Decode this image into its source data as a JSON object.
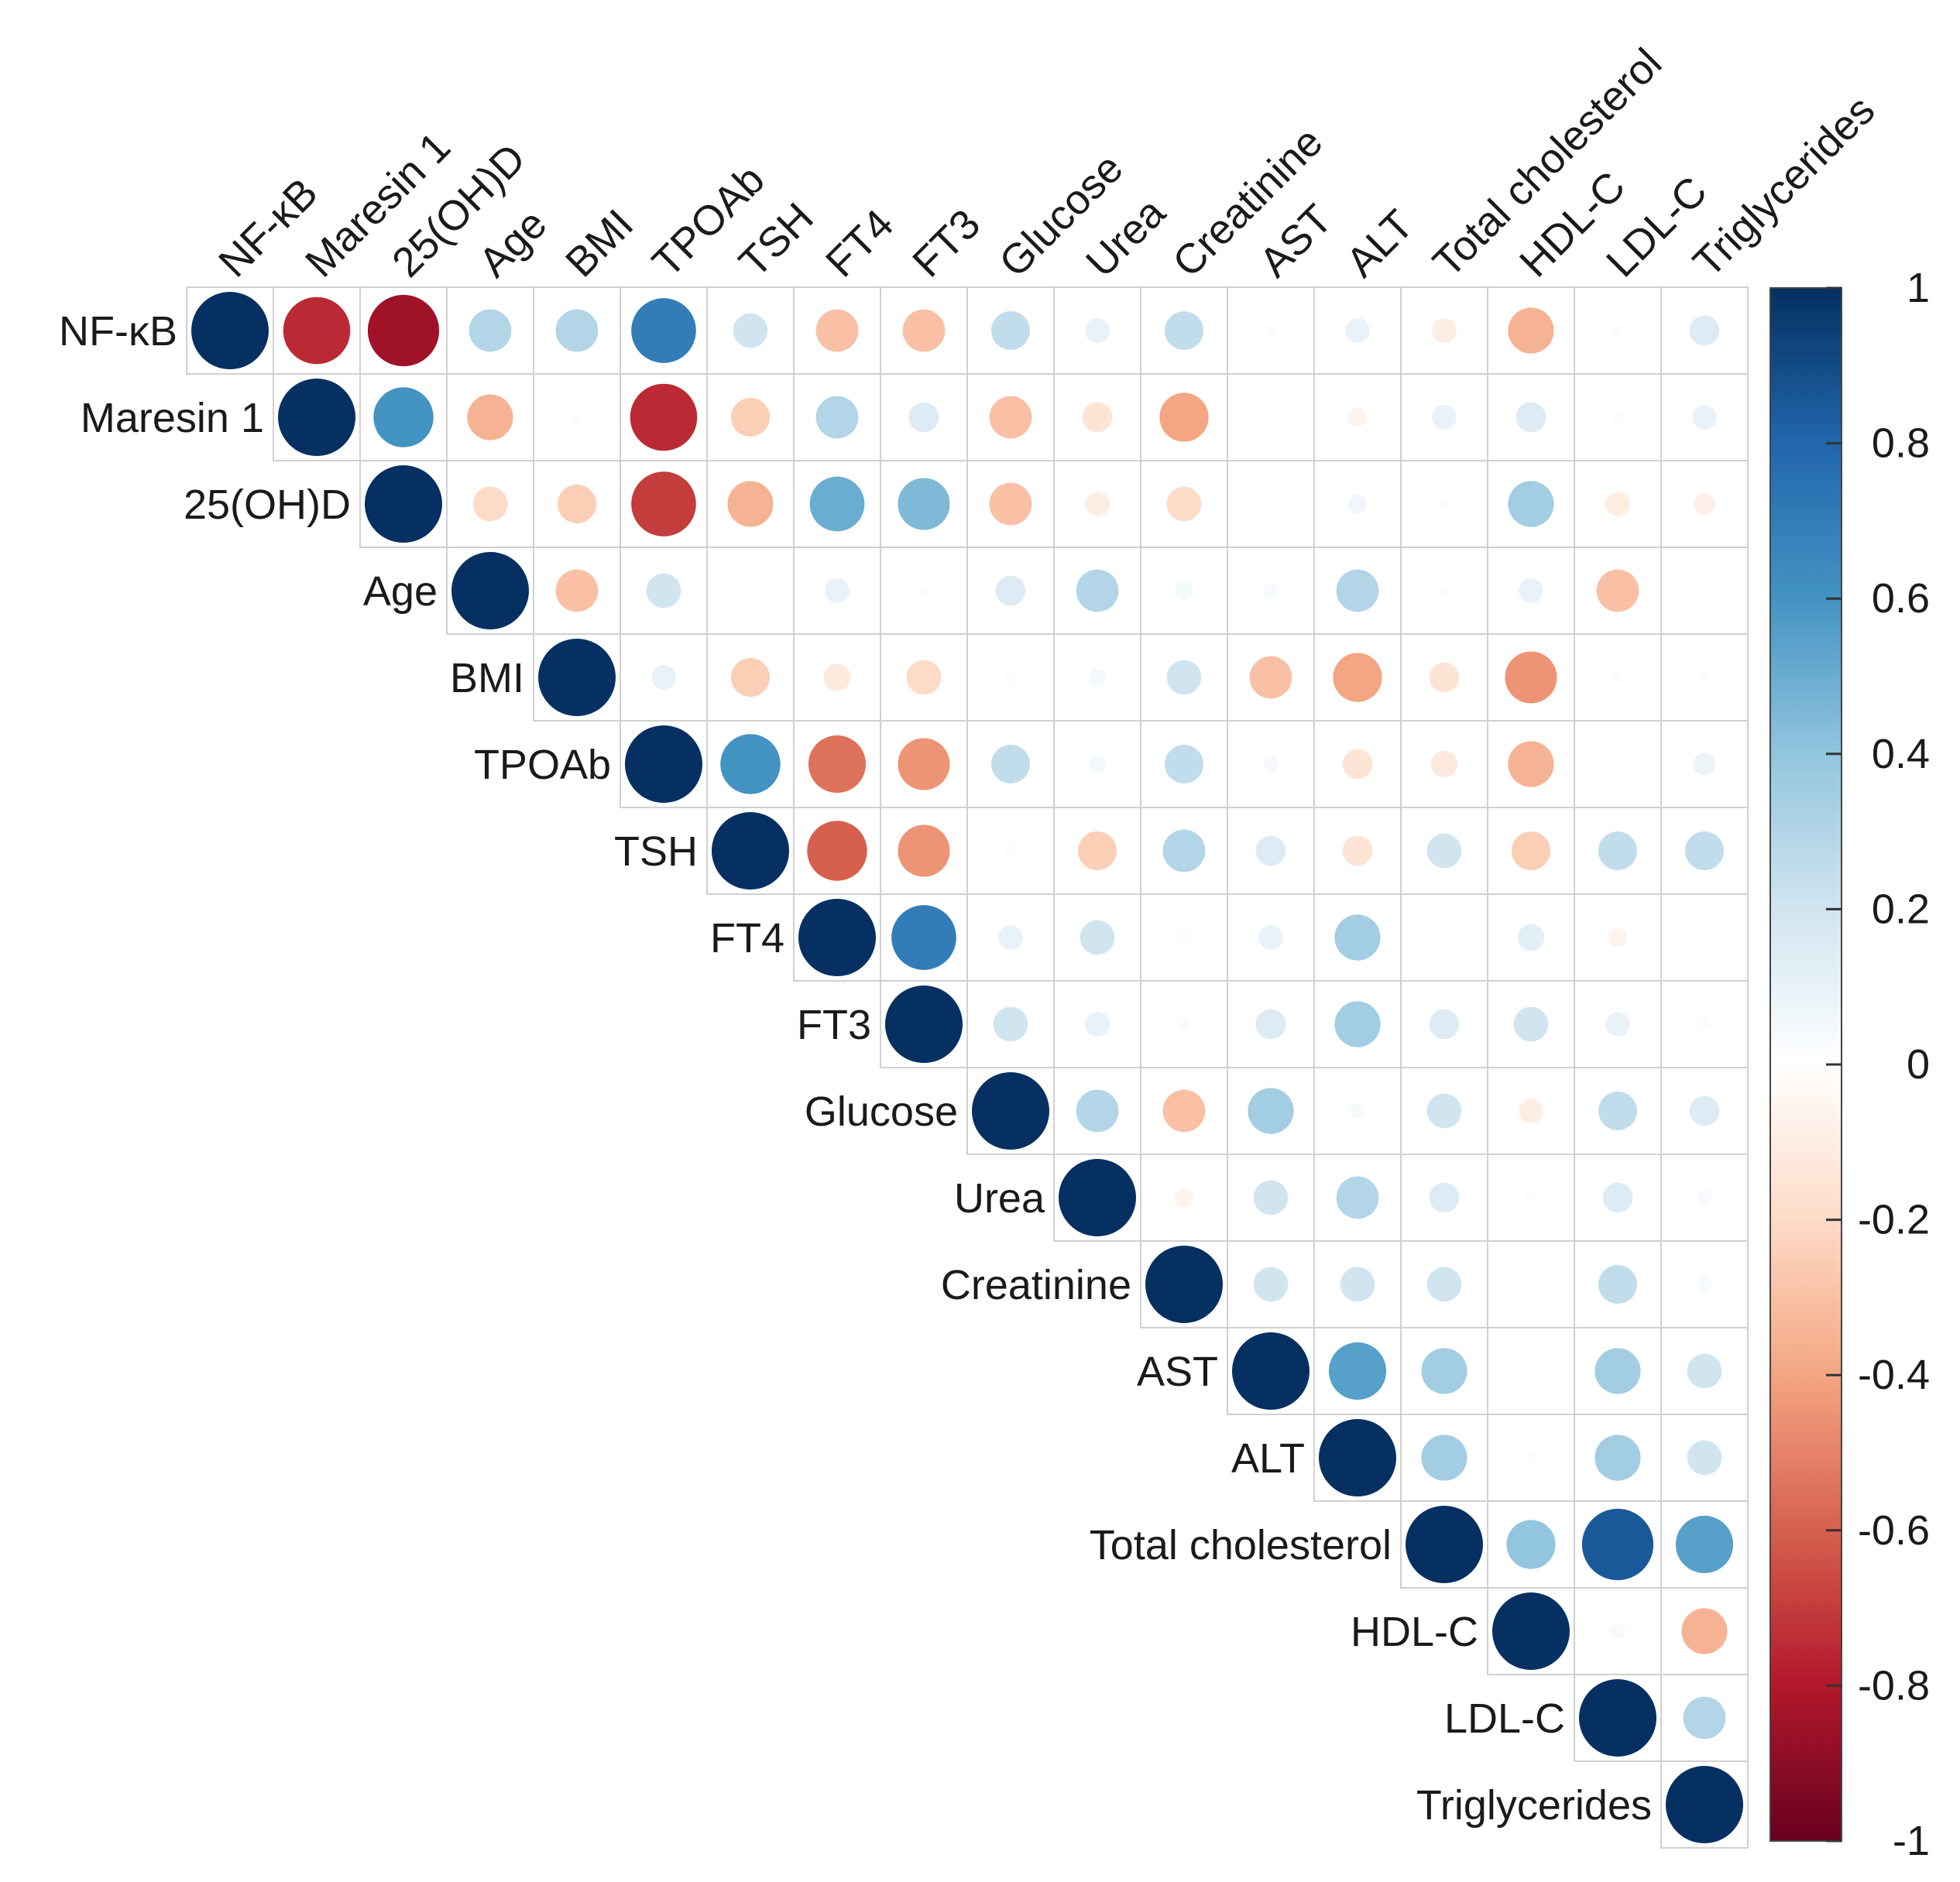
{
  "chart_data": {
    "type": "heatmap",
    "style": "corrplot-circle-upper",
    "variables": [
      "NF-κB",
      "Maresin 1",
      "25(OH)D",
      "Age",
      "BMI",
      "TPOAb",
      "TSH",
      "FT4",
      "FT3",
      "Glucose",
      "Urea",
      "Creatinine",
      "AST",
      "ALT",
      "Total cholesterol",
      "HDL-C",
      "LDL-C",
      "Triglycerides"
    ],
    "matrix_upper": [
      [
        1,
        -0.75,
        -0.85,
        0.3,
        0.3,
        0.7,
        0.2,
        -0.3,
        -0.3,
        0.25,
        0.1,
        0.25,
        0.02,
        0.1,
        -0.1,
        -0.35,
        0.02,
        0.15
      ],
      [
        1,
        0.6,
        -0.35,
        0.02,
        -0.75,
        -0.25,
        0.3,
        0.15,
        -0.3,
        -0.15,
        -0.4,
        0.0,
        -0.06,
        0.1,
        0.15,
        0.02,
        0.1
      ],
      [
        1,
        -0.2,
        -0.25,
        -0.7,
        -0.35,
        0.5,
        0.45,
        -0.3,
        -0.1,
        -0.2,
        0.0,
        0.06,
        0.02,
        0.35,
        -0.1,
        -0.08
      ],
      [
        1,
        -0.3,
        0.2,
        0.0,
        0.1,
        0.02,
        0.15,
        0.3,
        0.05,
        0.04,
        0.3,
        0.02,
        0.1,
        -0.3
      ],
      [
        1,
        0.1,
        -0.25,
        -0.12,
        -0.2,
        0.02,
        0.05,
        0.2,
        -0.3,
        -0.4,
        -0.15,
        -0.45,
        0.02,
        0.02
      ],
      [
        1,
        0.6,
        -0.55,
        -0.45,
        0.25,
        0.05,
        0.25,
        0.04,
        -0.15,
        -0.12,
        -0.35,
        0.0,
        0.08
      ],
      [
        1,
        -0.6,
        -0.45,
        0.02,
        -0.25,
        0.3,
        0.15,
        -0.15,
        0.2,
        -0.25,
        0.25,
        0.25
      ],
      [
        1,
        0.7,
        0.1,
        0.2,
        0.02,
        0.1,
        0.35,
        0.0,
        0.12,
        -0.06,
        0.0
      ],
      [
        1,
        0.2,
        0.1,
        0.02,
        0.15,
        0.35,
        0.15,
        0.2,
        0.1,
        0.02
      ],
      [
        1,
        0.3,
        -0.3,
        0.35,
        0.04,
        0.2,
        -0.1,
        0.25,
        0.15
      ],
      [
        1,
        -0.06,
        0.2,
        0.3,
        0.15,
        0.02,
        0.15,
        0.04
      ],
      [
        1,
        0.2,
        0.2,
        0.2,
        0.0,
        0.25,
        0.04
      ],
      [
        1,
        0.55,
        0.35,
        0.0,
        0.35,
        0.2
      ],
      [
        1,
        0.35,
        0.02,
        0.35,
        0.2
      ],
      [
        1,
        0.4,
        0.85,
        0.55
      ],
      [
        1,
        0.04,
        -0.35
      ],
      [
        1,
        0.3
      ],
      [
        1
      ]
    ],
    "colorbar": {
      "range": [
        -1,
        1
      ],
      "tick_values": [
        1,
        0.8,
        0.6,
        0.4,
        0.2,
        0,
        -0.2,
        -0.4,
        -0.6,
        -0.8,
        -1
      ],
      "tick_labels": [
        "1",
        "0.8",
        "0.6",
        "0.4",
        "0.2",
        "0",
        "-0.2",
        "-0.4",
        "-0.6",
        "-0.8",
        "-1"
      ],
      "colors": [
        "#053061",
        "#2166AC",
        "#4393C3",
        "#92C5DE",
        "#D1E5F0",
        "#FFFFFF",
        "#FDDBC7",
        "#F4A582",
        "#D6604D",
        "#B2182B",
        "#67001F"
      ]
    },
    "grid": true,
    "legend": "right"
  }
}
